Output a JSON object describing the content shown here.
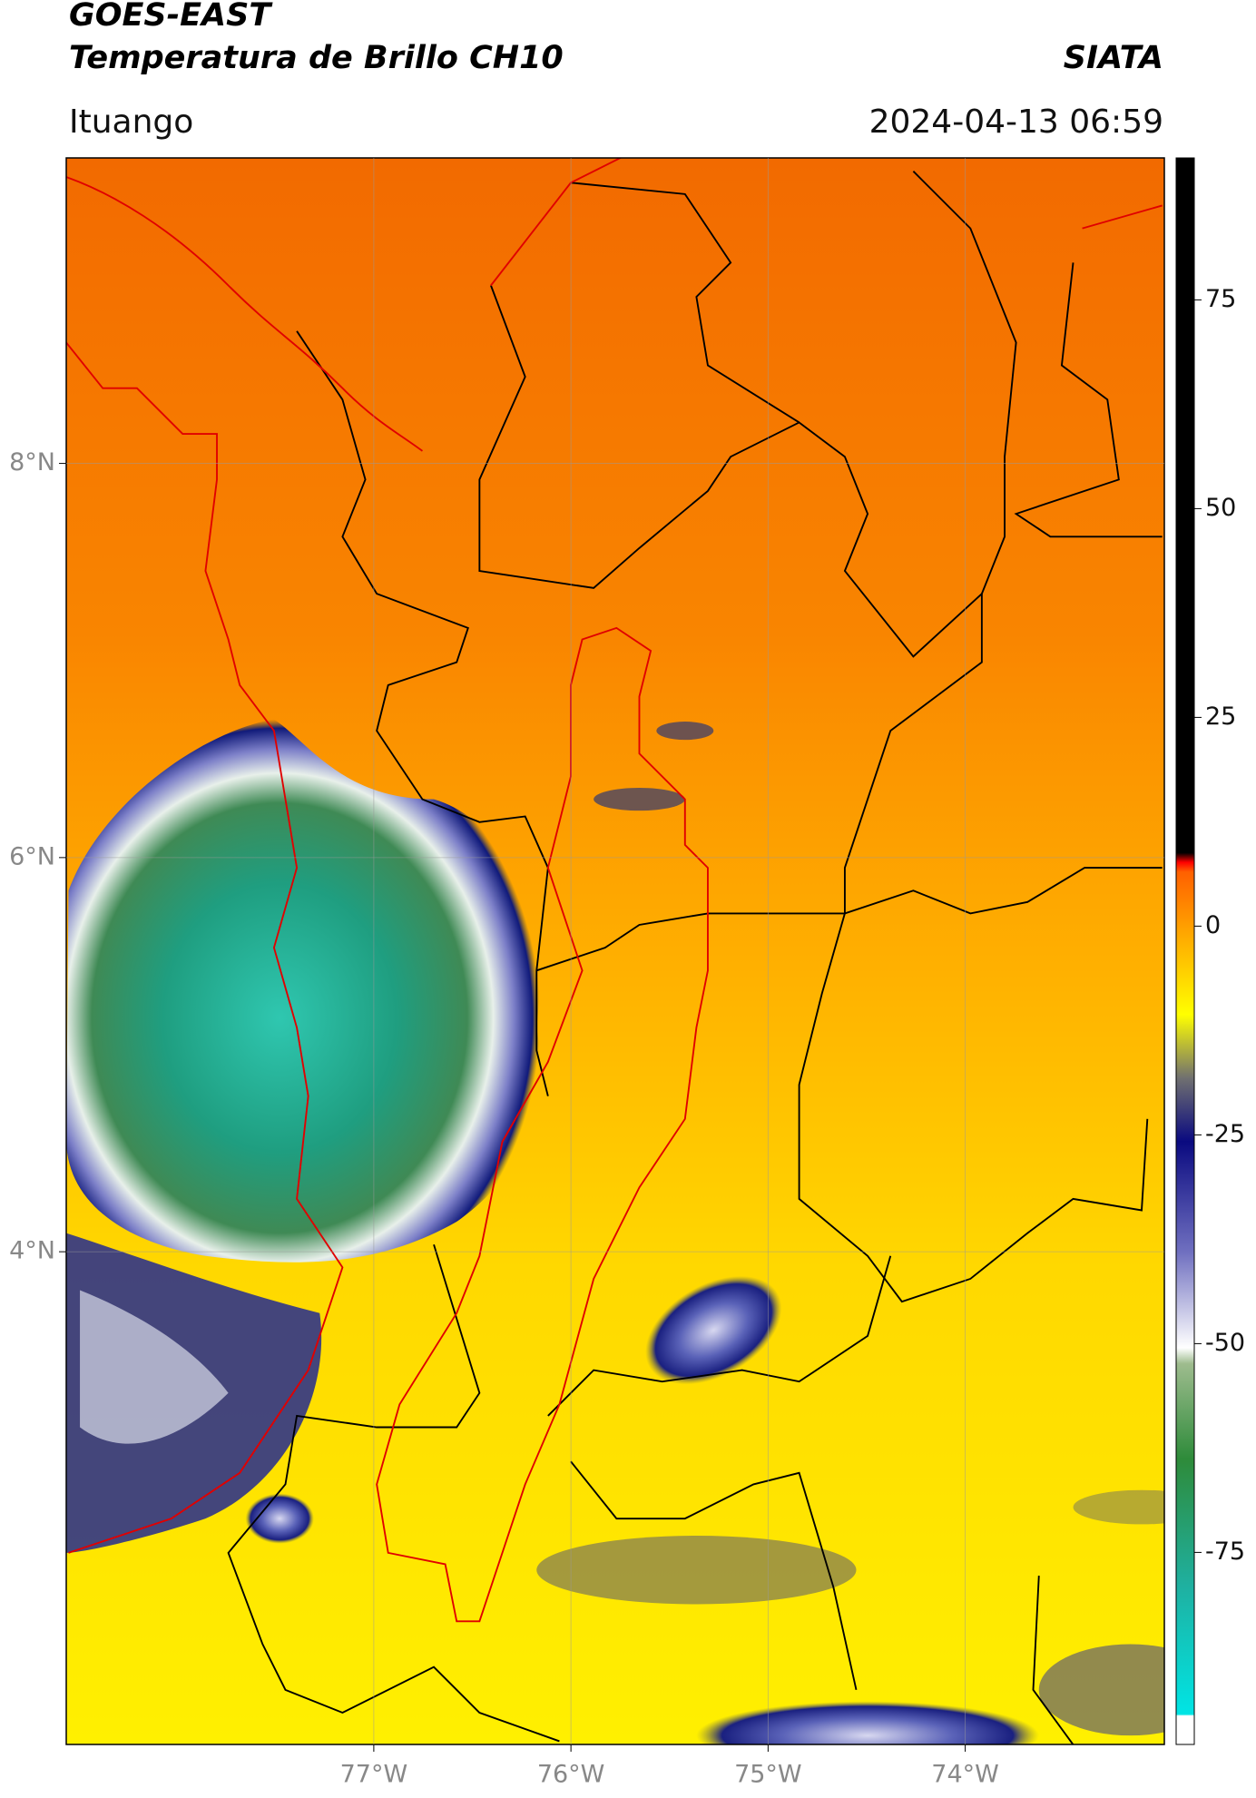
{
  "header": {
    "title": "GOES-EAST",
    "subtitle": "Temperatura de Brillo CH10",
    "brand": "SIATA",
    "location": "Ituango",
    "datetime": "2024-04-13 06:59"
  },
  "chart_data": {
    "type": "map",
    "xlim": [
      -78.56,
      -72.99
    ],
    "ylim": [
      1.5,
      9.55
    ],
    "xticks": [
      {
        "value": -77,
        "label": "77°W"
      },
      {
        "value": -76,
        "label": "76°W"
      },
      {
        "value": -75,
        "label": "75°W"
      },
      {
        "value": -74,
        "label": "74°W"
      }
    ],
    "yticks": [
      {
        "value": 8,
        "label": "8°N"
      },
      {
        "value": 6,
        "label": "6°N"
      },
      {
        "value": 4,
        "label": "4°N"
      }
    ],
    "grid": true,
    "colorbar": {
      "lim": [
        -98,
        92
      ],
      "ticks": [
        75,
        50,
        25,
        0,
        -25,
        -50,
        -75
      ]
    }
  }
}
